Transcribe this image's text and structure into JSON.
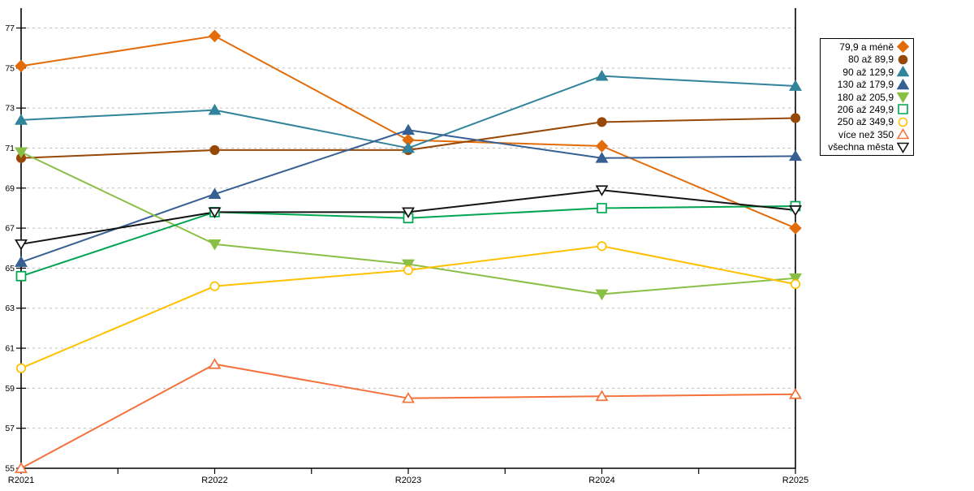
{
  "chart_data": {
    "type": "line",
    "title": "",
    "xlabel": "",
    "ylabel": "",
    "categories": [
      "R2021",
      "R2022",
      "R2023",
      "R2024",
      "R2025"
    ],
    "ylim": [
      55,
      77
    ],
    "ytick_step": 2,
    "grid": "horizontal-dashed",
    "legend_position": "right",
    "gridline_color": "#BDBDBD",
    "axis_color": "#000000",
    "background_color": "#FFFFFF",
    "series": [
      {
        "name": "79,9 a méně",
        "marker": "diamond",
        "filled": true,
        "color": "#E36C0A",
        "values": [
          75.1,
          76.6,
          71.4,
          71.1,
          67.0
        ]
      },
      {
        "name": "80 až 89,9",
        "marker": "circle",
        "filled": true,
        "color": "#974807",
        "values": [
          70.5,
          70.9,
          70.9,
          72.3,
          72.5
        ]
      },
      {
        "name": "90 až 129,9",
        "marker": "triangle-up",
        "filled": true,
        "color": "#31849B",
        "values": [
          72.4,
          72.9,
          71.0,
          74.6,
          74.1
        ]
      },
      {
        "name": "130 až 179,9",
        "marker": "triangle-up",
        "filled": true,
        "color": "#376092",
        "values": [
          65.3,
          68.7,
          71.9,
          70.5,
          70.6
        ]
      },
      {
        "name": "180 až 205,9",
        "marker": "triangle-down",
        "filled": true,
        "color": "#8ABF45",
        "values": [
          70.8,
          66.2,
          65.2,
          63.7,
          64.5
        ]
      },
      {
        "name": "206 až 249,9",
        "marker": "square",
        "filled": false,
        "color": "#00A550",
        "values": [
          64.6,
          67.8,
          67.5,
          68.0,
          68.1
        ]
      },
      {
        "name": "250 až 349,9",
        "marker": "circle",
        "filled": false,
        "color": "#FFC000",
        "values": [
          60.0,
          64.1,
          64.9,
          66.1,
          64.2
        ]
      },
      {
        "name": "více než 350",
        "marker": "triangle-up",
        "filled": false,
        "color": "#F4713B",
        "values": [
          55.0,
          60.2,
          58.5,
          58.6,
          58.7
        ]
      },
      {
        "name": "všechna města",
        "marker": "triangle-down",
        "filled": false,
        "color": "#141414",
        "values": [
          66.2,
          67.8,
          67.8,
          68.9,
          67.9
        ]
      }
    ]
  }
}
